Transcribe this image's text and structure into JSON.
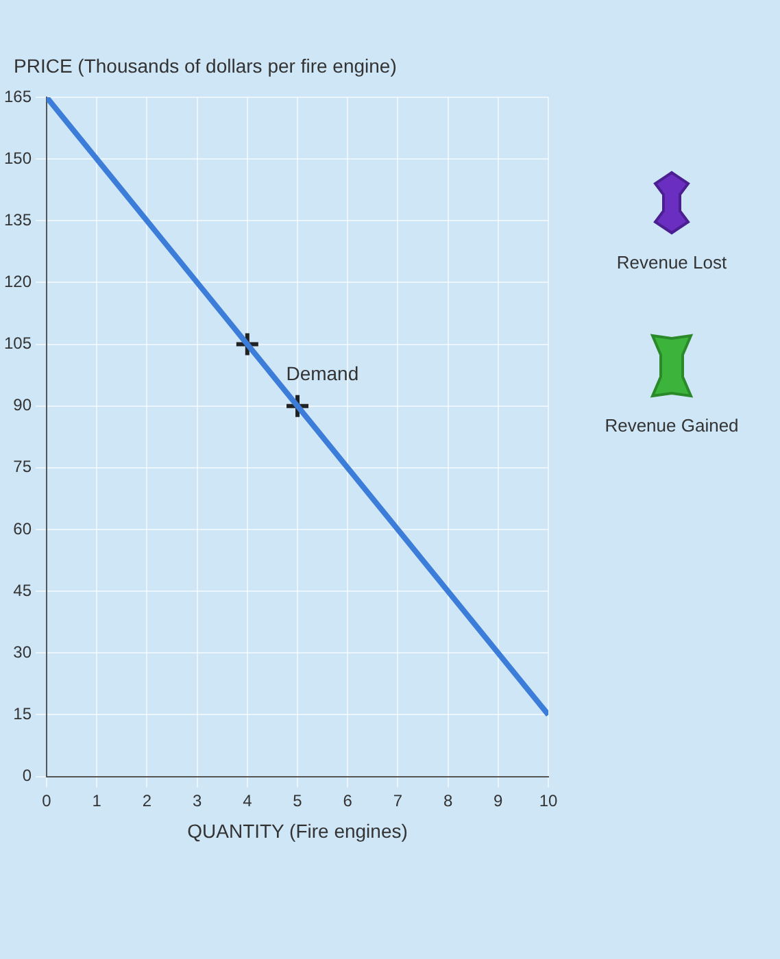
{
  "chart_data": {
    "type": "line",
    "xlabel": "QUANTITY (Fire engines)",
    "ylabel": "PRICE (Thousands of dollars per fire engine)",
    "series": [
      {
        "color": "#3b7dd8",
        "x": [
          0,
          10
        ],
        "values": [
          165,
          15
        ],
        "marker": "none"
      },
      {
        "type": "scatter",
        "color": "#222222",
        "x": [
          4,
          5
        ],
        "values": [
          105,
          90
        ],
        "marker": "cross"
      }
    ],
    "xlim": [
      0,
      10
    ],
    "xticks": [
      0,
      1,
      2,
      3,
      4,
      5,
      6,
      7,
      8,
      9,
      10
    ],
    "ylim": [
      0,
      165
    ],
    "yticks": [
      0,
      15,
      30,
      45,
      60,
      75,
      90,
      105,
      120,
      135,
      150,
      165
    ],
    "grid": true,
    "annotations": [
      {
        "text": "Demand",
        "x": 4.5,
        "y": 97.5
      },
      "Revenue Lost",
      "Revenue Gained"
    ]
  }
}
